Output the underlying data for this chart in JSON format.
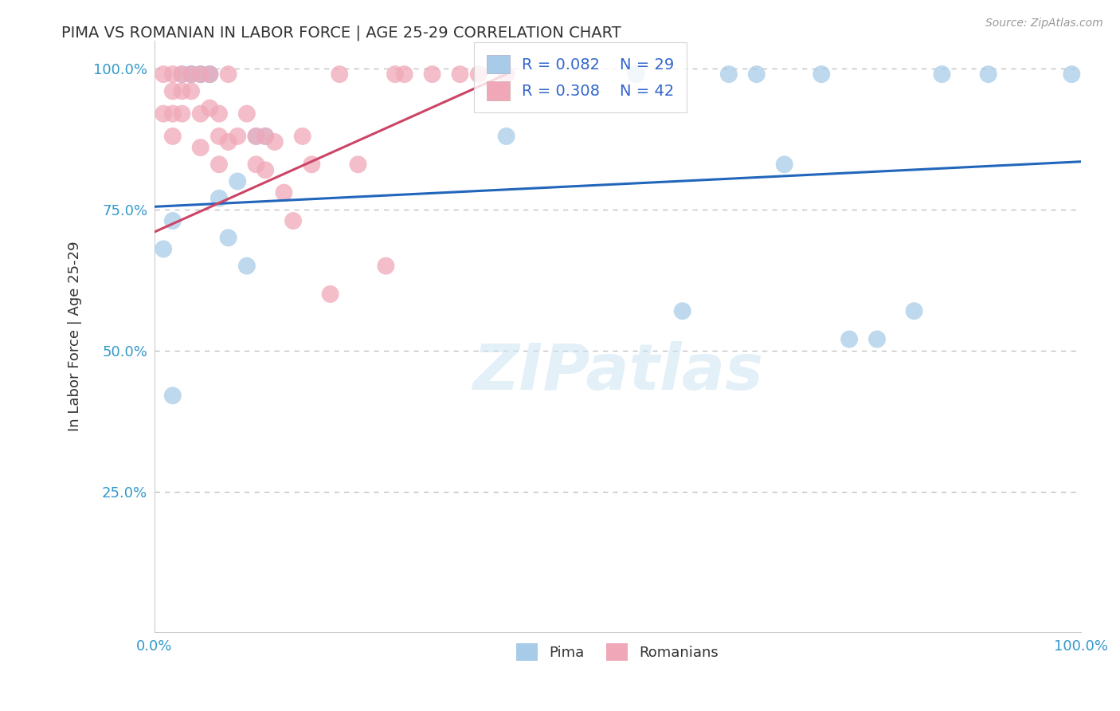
{
  "title": "PIMA VS ROMANIAN IN LABOR FORCE | AGE 25-29 CORRELATION CHART",
  "source_text": "Source: ZipAtlas.com",
  "ylabel": "In Labor Force | Age 25-29",
  "watermark": "ZIPatlas",
  "xlim": [
    0.0,
    1.0
  ],
  "ylim": [
    0.0,
    1.05
  ],
  "pima_color": "#a8cce8",
  "romanian_color": "#f0a8b8",
  "pima_line_color": "#2266bb",
  "romanian_line_color": "#cc4466",
  "legend_R_pima": "0.082",
  "legend_N_pima": "29",
  "legend_R_romanian": "0.308",
  "legend_N_romanian": "42",
  "pima_x": [
    0.01,
    0.02,
    0.03,
    0.04,
    0.04,
    0.05,
    0.05,
    0.06,
    0.06,
    0.07,
    0.08,
    0.09,
    0.1,
    0.11,
    0.12,
    0.02,
    0.38,
    0.52,
    0.57,
    0.62,
    0.65,
    0.68,
    0.72,
    0.75,
    0.78,
    0.82,
    0.85,
    0.9,
    0.99
  ],
  "pima_y": [
    0.68,
    0.73,
    0.99,
    0.99,
    0.99,
    0.99,
    0.99,
    0.99,
    0.99,
    0.77,
    0.7,
    0.8,
    0.65,
    0.88,
    0.88,
    0.42,
    0.88,
    0.99,
    0.57,
    0.99,
    0.99,
    0.83,
    0.99,
    0.52,
    0.52,
    0.57,
    0.99,
    0.99,
    0.99
  ],
  "romanian_x": [
    0.01,
    0.01,
    0.02,
    0.02,
    0.02,
    0.02,
    0.03,
    0.03,
    0.03,
    0.04,
    0.04,
    0.05,
    0.05,
    0.05,
    0.06,
    0.06,
    0.07,
    0.07,
    0.07,
    0.08,
    0.08,
    0.09,
    0.1,
    0.11,
    0.11,
    0.12,
    0.12,
    0.13,
    0.14,
    0.15,
    0.16,
    0.17,
    0.19,
    0.2,
    0.22,
    0.25,
    0.26,
    0.27,
    0.3,
    0.33,
    0.35,
    0.38
  ],
  "romanian_y": [
    0.99,
    0.92,
    0.99,
    0.96,
    0.92,
    0.88,
    0.99,
    0.96,
    0.92,
    0.99,
    0.96,
    0.99,
    0.92,
    0.86,
    0.99,
    0.93,
    0.92,
    0.88,
    0.83,
    0.99,
    0.87,
    0.88,
    0.92,
    0.88,
    0.83,
    0.88,
    0.82,
    0.87,
    0.78,
    0.73,
    0.88,
    0.83,
    0.6,
    0.99,
    0.83,
    0.65,
    0.99,
    0.99,
    0.99,
    0.99,
    0.99,
    0.99
  ],
  "pima_trend_x": [
    0.0,
    1.0
  ],
  "pima_trend_y": [
    0.755,
    0.835
  ],
  "romanian_trend_x": [
    0.0,
    0.38
  ],
  "romanian_trend_y": [
    0.71,
    0.99
  ],
  "background_color": "#ffffff",
  "grid_color": "#bbbbbb",
  "title_color": "#333333",
  "tick_color": "#3399cc",
  "legend_text_color": "#3366cc"
}
